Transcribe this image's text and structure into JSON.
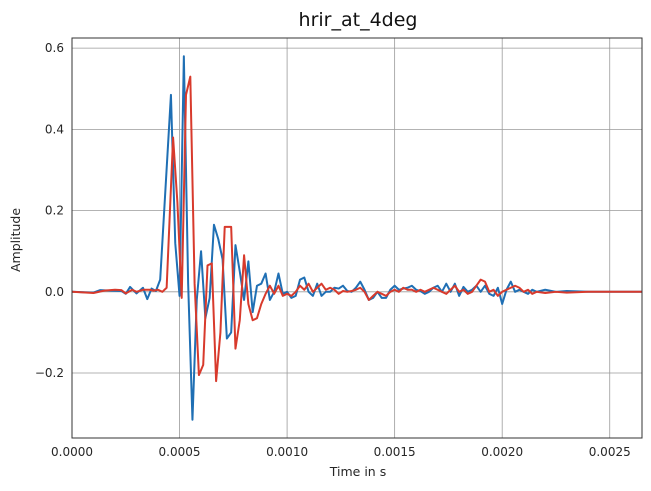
{
  "chart_data": {
    "type": "line",
    "title": "hrir_at_4deg",
    "xlabel": "Time in s",
    "ylabel": "Amplitude",
    "xlim": [
      0.0,
      0.00265
    ],
    "ylim": [
      -0.36,
      0.625
    ],
    "x_ticks": [
      0.0,
      0.0005,
      0.001,
      0.0015,
      0.002,
      0.0025
    ],
    "x_tick_labels": [
      "0.0000",
      "0.0005",
      "0.0010",
      "0.0015",
      "0.0020",
      "0.0025"
    ],
    "y_ticks": [
      -0.2,
      0.0,
      0.2,
      0.4,
      0.6
    ],
    "y_tick_labels": [
      "−0.2",
      "0.0",
      "0.2",
      "0.4",
      "0.6"
    ],
    "grid": true,
    "legend": "none",
    "series": [
      {
        "color": "#1f6fb4",
        "points": [
          [
            0.0,
            0.0
          ],
          [
            0.0001,
            -0.002
          ],
          [
            0.00013,
            0.004
          ],
          [
            0.00018,
            0.003
          ],
          [
            0.00023,
            0.002
          ],
          [
            0.00025,
            -0.005
          ],
          [
            0.00027,
            0.012
          ],
          [
            0.0003,
            -0.004
          ],
          [
            0.00033,
            0.01
          ],
          [
            0.00035,
            -0.018
          ],
          [
            0.00037,
            0.008
          ],
          [
            0.00039,
            0.002
          ],
          [
            0.00041,
            0.03
          ],
          [
            0.00046,
            0.485
          ],
          [
            0.00048,
            0.12
          ],
          [
            0.0005,
            -0.01
          ],
          [
            0.00052,
            0.58
          ],
          [
            0.00054,
            0.02
          ],
          [
            0.00056,
            -0.315
          ],
          [
            0.00058,
            -0.02
          ],
          [
            0.0006,
            0.1
          ],
          [
            0.00062,
            -0.065
          ],
          [
            0.00064,
            -0.015
          ],
          [
            0.00066,
            0.165
          ],
          [
            0.00068,
            0.13
          ],
          [
            0.0007,
            0.08
          ],
          [
            0.00072,
            -0.115
          ],
          [
            0.00074,
            -0.1
          ],
          [
            0.00076,
            0.115
          ],
          [
            0.00078,
            0.05
          ],
          [
            0.0008,
            -0.02
          ],
          [
            0.00082,
            0.075
          ],
          [
            0.00084,
            -0.05
          ],
          [
            0.00086,
            0.015
          ],
          [
            0.00088,
            0.02
          ],
          [
            0.0009,
            0.045
          ],
          [
            0.00092,
            -0.02
          ],
          [
            0.00094,
            0.0
          ],
          [
            0.00096,
            0.045
          ],
          [
            0.00098,
            -0.005
          ],
          [
            0.001,
            0.0
          ],
          [
            0.00102,
            -0.015
          ],
          [
            0.00104,
            -0.01
          ],
          [
            0.00106,
            0.03
          ],
          [
            0.00108,
            0.035
          ],
          [
            0.0011,
            0.0
          ],
          [
            0.00112,
            -0.01
          ],
          [
            0.00114,
            0.02
          ],
          [
            0.00116,
            -0.01
          ],
          [
            0.00118,
            0.0
          ],
          [
            0.0012,
            0.0
          ],
          [
            0.00122,
            0.01
          ],
          [
            0.00124,
            0.008
          ],
          [
            0.00126,
            0.015
          ],
          [
            0.00128,
            0.002
          ],
          [
            0.0013,
            0.0
          ],
          [
            0.00132,
            0.01
          ],
          [
            0.00134,
            0.025
          ],
          [
            0.00136,
            0.005
          ],
          [
            0.00138,
            -0.02
          ],
          [
            0.0014,
            -0.015
          ],
          [
            0.00142,
            0.0
          ],
          [
            0.00144,
            -0.015
          ],
          [
            0.00146,
            -0.015
          ],
          [
            0.00148,
            0.005
          ],
          [
            0.0015,
            0.015
          ],
          [
            0.00152,
            0.005
          ],
          [
            0.00154,
            0.008
          ],
          [
            0.00156,
            0.01
          ],
          [
            0.00158,
            0.015
          ],
          [
            0.0016,
            0.005
          ],
          [
            0.00162,
            0.002
          ],
          [
            0.00164,
            -0.005
          ],
          [
            0.00166,
            0.0
          ],
          [
            0.00168,
            0.01
          ],
          [
            0.0017,
            0.015
          ],
          [
            0.00172,
            0.0
          ],
          [
            0.00174,
            0.02
          ],
          [
            0.00176,
            0.0
          ],
          [
            0.00178,
            0.02
          ],
          [
            0.0018,
            -0.01
          ],
          [
            0.00182,
            0.012
          ],
          [
            0.00184,
            0.0
          ],
          [
            0.00186,
            0.005
          ],
          [
            0.00188,
            0.015
          ],
          [
            0.0019,
            0.0
          ],
          [
            0.00192,
            0.015
          ],
          [
            0.00194,
            -0.005
          ],
          [
            0.00196,
            -0.01
          ],
          [
            0.00198,
            0.01
          ],
          [
            0.002,
            -0.03
          ],
          [
            0.00202,
            0.005
          ],
          [
            0.00204,
            0.025
          ],
          [
            0.00206,
            0.0
          ],
          [
            0.00208,
            0.005
          ],
          [
            0.0021,
            0.0
          ],
          [
            0.00212,
            -0.005
          ],
          [
            0.00214,
            0.005
          ],
          [
            0.00216,
            0.0
          ],
          [
            0.0022,
            0.005
          ],
          [
            0.00225,
            0.0
          ],
          [
            0.0023,
            0.002
          ],
          [
            0.0024,
            0.0
          ],
          [
            0.00265,
            0.0
          ]
        ]
      },
      {
        "color": "#d83a2c",
        "points": [
          [
            0.0,
            0.0
          ],
          [
            0.0001,
            -0.003
          ],
          [
            0.00015,
            0.003
          ],
          [
            0.0002,
            0.005
          ],
          [
            0.00023,
            0.004
          ],
          [
            0.00025,
            -0.004
          ],
          [
            0.00028,
            0.005
          ],
          [
            0.0003,
            0.0
          ],
          [
            0.00033,
            0.005
          ],
          [
            0.00036,
            0.005
          ],
          [
            0.00038,
            0.003
          ],
          [
            0.0004,
            0.005
          ],
          [
            0.00042,
            0.0
          ],
          [
            0.00044,
            0.01
          ],
          [
            0.00047,
            0.38
          ],
          [
            0.00049,
            0.22
          ],
          [
            0.00051,
            -0.015
          ],
          [
            0.00053,
            0.485
          ],
          [
            0.00055,
            0.53
          ],
          [
            0.00057,
            0.02
          ],
          [
            0.00059,
            -0.205
          ],
          [
            0.00061,
            -0.18
          ],
          [
            0.00063,
            0.065
          ],
          [
            0.00065,
            0.07
          ],
          [
            0.00067,
            -0.22
          ],
          [
            0.00069,
            -0.1
          ],
          [
            0.00071,
            0.16
          ],
          [
            0.00074,
            0.16
          ],
          [
            0.00076,
            -0.14
          ],
          [
            0.00078,
            -0.07
          ],
          [
            0.0008,
            0.09
          ],
          [
            0.00082,
            -0.03
          ],
          [
            0.00084,
            -0.07
          ],
          [
            0.00086,
            -0.065
          ],
          [
            0.00088,
            -0.03
          ],
          [
            0.0009,
            -0.005
          ],
          [
            0.00092,
            0.015
          ],
          [
            0.00094,
            -0.005
          ],
          [
            0.00096,
            0.015
          ],
          [
            0.00098,
            -0.01
          ],
          [
            0.001,
            -0.005
          ],
          [
            0.00102,
            -0.01
          ],
          [
            0.00104,
            0.0
          ],
          [
            0.00106,
            0.015
          ],
          [
            0.00108,
            0.005
          ],
          [
            0.0011,
            0.02
          ],
          [
            0.00112,
            0.0
          ],
          [
            0.00114,
            0.01
          ],
          [
            0.00116,
            0.02
          ],
          [
            0.00118,
            0.005
          ],
          [
            0.0012,
            0.01
          ],
          [
            0.00122,
            0.005
          ],
          [
            0.00124,
            -0.005
          ],
          [
            0.00126,
            0.002
          ],
          [
            0.00128,
            0.0
          ],
          [
            0.0013,
            0.002
          ],
          [
            0.00132,
            0.005
          ],
          [
            0.00134,
            0.01
          ],
          [
            0.00136,
            0.0
          ],
          [
            0.00138,
            -0.02
          ],
          [
            0.0014,
            -0.01
          ],
          [
            0.00142,
            0.0
          ],
          [
            0.00144,
            -0.005
          ],
          [
            0.00146,
            -0.01
          ],
          [
            0.00148,
            0.0
          ],
          [
            0.0015,
            0.005
          ],
          [
            0.00152,
            0.0
          ],
          [
            0.00154,
            0.01
          ],
          [
            0.00156,
            0.005
          ],
          [
            0.00158,
            0.005
          ],
          [
            0.0016,
            0.0
          ],
          [
            0.00162,
            0.005
          ],
          [
            0.00164,
            0.0
          ],
          [
            0.00166,
            0.005
          ],
          [
            0.00168,
            0.01
          ],
          [
            0.0017,
            0.005
          ],
          [
            0.00172,
            0.0
          ],
          [
            0.00174,
            -0.005
          ],
          [
            0.00176,
            0.005
          ],
          [
            0.00178,
            0.015
          ],
          [
            0.0018,
            0.0
          ],
          [
            0.00182,
            0.005
          ],
          [
            0.00184,
            -0.005
          ],
          [
            0.00186,
            0.0
          ],
          [
            0.00188,
            0.015
          ],
          [
            0.0019,
            0.03
          ],
          [
            0.00192,
            0.025
          ],
          [
            0.00194,
            0.0
          ],
          [
            0.00196,
            0.005
          ],
          [
            0.00198,
            -0.01
          ],
          [
            0.002,
            0.0
          ],
          [
            0.00202,
            0.005
          ],
          [
            0.00204,
            0.01
          ],
          [
            0.00206,
            0.015
          ],
          [
            0.00208,
            0.01
          ],
          [
            0.0021,
            0.0
          ],
          [
            0.00212,
            0.005
          ],
          [
            0.00214,
            -0.005
          ],
          [
            0.00216,
            0.0
          ],
          [
            0.0022,
            -0.003
          ],
          [
            0.00225,
            0.0
          ],
          [
            0.0023,
            -0.002
          ],
          [
            0.0024,
            0.0
          ],
          [
            0.00265,
            0.0
          ]
        ]
      }
    ]
  }
}
